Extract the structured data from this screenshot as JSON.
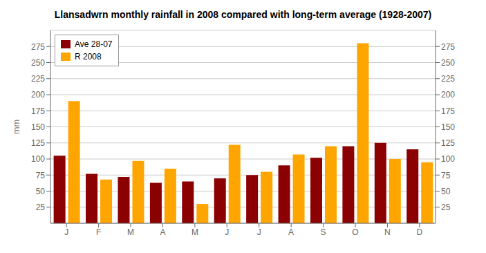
{
  "chart_data": {
    "type": "bar",
    "title": "Llansadwrn monthly rainfall in 2008 compared with long-term average (1928-2007)",
    "categories": [
      "J",
      "F",
      "M",
      "A",
      "M",
      "J",
      "J",
      "A",
      "S",
      "O",
      "N",
      "D"
    ],
    "series": [
      {
        "name": "Ave 28-07",
        "color": "#8B0000",
        "values": [
          105,
          77,
          72,
          63,
          65,
          70,
          75,
          90,
          102,
          120,
          125,
          115
        ]
      },
      {
        "name": "R 2008",
        "color": "#FFA500",
        "values": [
          190,
          68,
          97,
          85,
          30,
          122,
          80,
          107,
          120,
          280,
          100,
          95
        ]
      }
    ],
    "ylabel": "mm",
    "ylim": [
      0,
      300
    ],
    "yticks": [
      25,
      50,
      75,
      100,
      125,
      150,
      175,
      200,
      225,
      250,
      275
    ],
    "y2lim": [
      0,
      300
    ],
    "y2ticks": [
      25,
      50,
      75,
      100,
      125,
      150,
      175,
      200,
      225,
      250,
      275
    ],
    "grid": true,
    "legend": "upper left"
  }
}
